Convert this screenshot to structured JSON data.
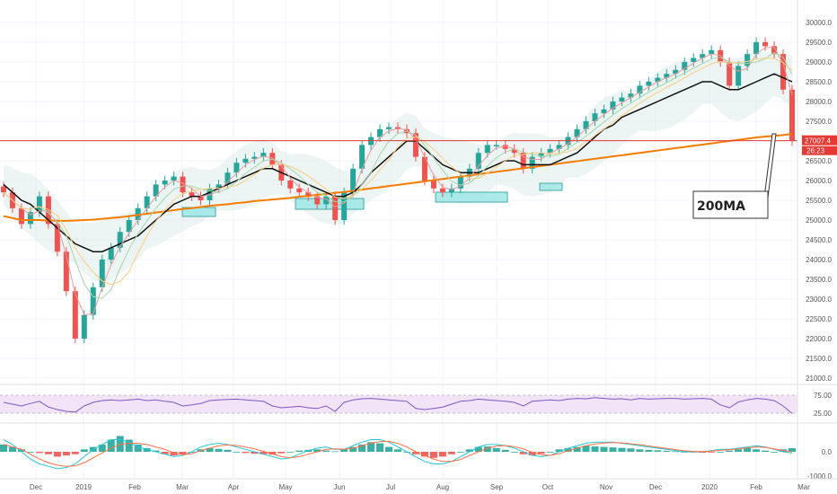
{
  "chart_data": [
    {
      "type": "candlestick",
      "ylim": [
        21000,
        30000
      ],
      "y_ticks": [
        "21000.0",
        "21500.0",
        "22000.0",
        "22500.0",
        "23000.0",
        "23500.0",
        "24000.0",
        "24500.0",
        "25000.0",
        "25500.0",
        "26000.0",
        "26500.0",
        "27000.0",
        "27500.0",
        "28000.0",
        "28500.0",
        "29000.0",
        "29500.0",
        "30000.0"
      ],
      "x_ticks": [
        "Dec",
        "2019",
        "Feb",
        "Mar",
        "Apr",
        "May",
        "Jun",
        "Jul",
        "Aug",
        "Sep",
        "Oct",
        "Nov",
        "Dec",
        "2020",
        "Feb",
        "Mar"
      ],
      "grid": true,
      "price_x": [
        0,
        10,
        20,
        30,
        40,
        50,
        60,
        70,
        80,
        90,
        100,
        110,
        120,
        130,
        140,
        150,
        160,
        170,
        180,
        190,
        200,
        210,
        220,
        230,
        240,
        250,
        260,
        270,
        280,
        290,
        300,
        310,
        320,
        330,
        340,
        350,
        360,
        370,
        380,
        390,
        400,
        410,
        420,
        430,
        440,
        450,
        460,
        470,
        480,
        490,
        500,
        510,
        520,
        530,
        540,
        550,
        560,
        570,
        580,
        590,
        600,
        610,
        620,
        630,
        640,
        650,
        660,
        670,
        680,
        690,
        700,
        710,
        720,
        730,
        740,
        750,
        760,
        770,
        780,
        790,
        800,
        810,
        820,
        830,
        840,
        850,
        860,
        870,
        880
      ],
      "price_close": [
        25700,
        25300,
        24900,
        25200,
        25600,
        24900,
        24200,
        23200,
        22000,
        22600,
        23300,
        24000,
        24300,
        24700,
        25000,
        25300,
        25600,
        25900,
        26000,
        26100,
        25700,
        25600,
        25500,
        25800,
        25900,
        26200,
        26450,
        26550,
        26600,
        26700,
        26400,
        26000,
        25800,
        25700,
        25600,
        25400,
        25600,
        25000,
        25700,
        26300,
        26900,
        27100,
        27300,
        27350,
        27300,
        27200,
        26600,
        26000,
        25800,
        25700,
        25800,
        26100,
        26300,
        26700,
        26900,
        26900,
        26800,
        26700,
        26300,
        26600,
        26700,
        26800,
        26900,
        27100,
        27300,
        27500,
        27700,
        27800,
        28000,
        28100,
        28200,
        28400,
        28500,
        28600,
        28700,
        28800,
        29000,
        29100,
        29200,
        29300,
        29000,
        28400,
        28900,
        29200,
        29500,
        29400,
        29200,
        28300,
        27000
      ],
      "overlays": [
        {
          "name": "200MA",
          "color": "#f57c00",
          "values": [
            25100,
            25050,
            25000,
            25000,
            25000,
            24990,
            24980,
            24980,
            24990,
            25000,
            25010,
            25030,
            25050,
            25070,
            25100,
            25130,
            25160,
            25190,
            25220,
            25250,
            25280,
            25300,
            25330,
            25360,
            25380,
            25400,
            25430,
            25450,
            25480,
            25500,
            25520,
            25540,
            25560,
            25590,
            25610,
            25640,
            25660,
            25690,
            25710,
            25740,
            25770,
            25800,
            25830,
            25860,
            25890,
            25920,
            25950,
            25980,
            26010,
            26040,
            26070,
            26100,
            26130,
            26160,
            26190,
            26220,
            26250,
            26280,
            26310,
            26340,
            26370,
            26400,
            26430,
            26460,
            26490,
            26520,
            26550,
            26580,
            26610,
            26640,
            26670,
            26700,
            26730,
            26760,
            26790,
            26820,
            26850,
            26880,
            26910,
            26940,
            26970,
            27000,
            27030,
            27060,
            27090,
            27110,
            27130,
            27150,
            27180
          ]
        },
        {
          "name": "",
          "color": "#111111",
          "values": [
            25900,
            25700,
            25500,
            25400,
            25200,
            25000,
            24800,
            24600,
            24400,
            24300,
            24200,
            24200,
            24300,
            24400,
            24500,
            24600,
            24800,
            25000,
            25200,
            25400,
            25500,
            25600,
            25600,
            25700,
            25800,
            25900,
            26000,
            26100,
            26200,
            26300,
            26300,
            26200,
            26100,
            26000,
            25900,
            25800,
            25700,
            25600,
            25600,
            25700,
            25900,
            26200,
            26400,
            26600,
            26800,
            27000,
            27000,
            26800,
            26600,
            26400,
            26300,
            26200,
            26200,
            26200,
            26300,
            26400,
            26500,
            26500,
            26400,
            26400,
            26400,
            26400,
            26500,
            26600,
            26700,
            26900,
            27100,
            27300,
            27400,
            27600,
            27700,
            27800,
            27900,
            28000,
            28100,
            28200,
            28300,
            28400,
            28500,
            28500,
            28400,
            28300,
            28300,
            28400,
            28500,
            28600,
            28700,
            28600,
            28500
          ]
        }
      ],
      "last_price_label": "27007.4",
      "countdown_label": "26:23",
      "annotation": "200MA"
    },
    {
      "type": "line",
      "ylim": [
        0,
        100
      ],
      "y_ticks": [
        "25.00",
        "75.00"
      ],
      "x": [
        0,
        10,
        20,
        30,
        40,
        50,
        60,
        70,
        80,
        90,
        100,
        110,
        120,
        130,
        140,
        150,
        160,
        170,
        180,
        190,
        200,
        210,
        220,
        230,
        240,
        250,
        260,
        270,
        280,
        290,
        300,
        310,
        320,
        330,
        340,
        350,
        360,
        370,
        380,
        390,
        400,
        410,
        420,
        430,
        440,
        450,
        460,
        470,
        480,
        490,
        500,
        510,
        520,
        530,
        540,
        550,
        560,
        570,
        580,
        590,
        600,
        610,
        620,
        630,
        640,
        650,
        660,
        670,
        680,
        690,
        700,
        710,
        720,
        730,
        740,
        750,
        760,
        770,
        780,
        790,
        800,
        810,
        820,
        830,
        840,
        850,
        860,
        870,
        880
      ],
      "series": [
        {
          "name": "",
          "color": "#7e57c2",
          "values": [
            55,
            50,
            45,
            52,
            58,
            42,
            35,
            30,
            28,
            45,
            55,
            60,
            62,
            60,
            62,
            64,
            60,
            62,
            58,
            55,
            45,
            48,
            52,
            60,
            62,
            63,
            64,
            62,
            60,
            58,
            45,
            40,
            42,
            44,
            40,
            38,
            45,
            30,
            55,
            62,
            65,
            66,
            64,
            62,
            60,
            58,
            38,
            35,
            38,
            42,
            50,
            58,
            60,
            64,
            62,
            60,
            58,
            55,
            45,
            58,
            60,
            62,
            60,
            64,
            66,
            65,
            68,
            66,
            64,
            65,
            62,
            66,
            64,
            65,
            66,
            66,
            64,
            65,
            66,
            64,
            48,
            40,
            56,
            62,
            66,
            64,
            60,
            45,
            24
          ]
        }
      ]
    },
    {
      "type": "bar",
      "ylim": [
        -1000,
        1000
      ],
      "y_ticks": [
        "0.0",
        "-1000.0"
      ],
      "x": [
        0,
        10,
        20,
        30,
        40,
        50,
        60,
        70,
        80,
        90,
        100,
        110,
        120,
        130,
        140,
        150,
        160,
        170,
        180,
        190,
        200,
        210,
        220,
        230,
        240,
        250,
        260,
        270,
        280,
        290,
        300,
        310,
        320,
        330,
        340,
        350,
        360,
        370,
        380,
        390,
        400,
        410,
        420,
        430,
        440,
        450,
        460,
        470,
        480,
        490,
        500,
        510,
        520,
        530,
        540,
        550,
        560,
        570,
        580,
        590,
        600,
        610,
        620,
        630,
        640,
        650,
        660,
        670,
        680,
        690,
        700,
        710,
        720,
        730,
        740,
        750,
        760,
        770,
        780,
        790,
        800,
        810,
        820,
        830,
        840,
        850,
        860,
        870,
        880
      ],
      "values": [
        300,
        200,
        100,
        0,
        -50,
        -100,
        -200,
        -150,
        -100,
        100,
        200,
        300,
        500,
        650,
        500,
        300,
        150,
        50,
        -100,
        -150,
        -100,
        0,
        100,
        150,
        120,
        80,
        0,
        -50,
        -80,
        -100,
        -120,
        -60,
        0,
        50,
        80,
        100,
        50,
        20,
        100,
        200,
        300,
        400,
        350,
        200,
        100,
        0,
        -100,
        -200,
        -250,
        -200,
        -100,
        0,
        100,
        200,
        220,
        150,
        80,
        0,
        -100,
        -150,
        -80,
        0,
        100,
        150,
        200,
        250,
        220,
        200,
        180,
        160,
        140,
        100,
        80,
        60,
        40,
        20,
        0,
        -20,
        -40,
        -20,
        0,
        50,
        100,
        150,
        100,
        50,
        0,
        100,
        150
      ],
      "series": [
        {
          "name": "",
          "color": "#26c6da",
          "values": [
            500,
            300,
            0,
            -300,
            -500,
            -600,
            -700,
            -650,
            -500,
            -200,
            100,
            300,
            500,
            500,
            400,
            200,
            100,
            0,
            -100,
            -200,
            -150,
            0,
            200,
            300,
            350,
            300,
            200,
            100,
            0,
            -100,
            -200,
            -300,
            -250,
            -100,
            50,
            150,
            200,
            100,
            100,
            250,
            400,
            500,
            500,
            400,
            200,
            0,
            -200,
            -400,
            -500,
            -500,
            -400,
            -200,
            0,
            200,
            300,
            300,
            250,
            150,
            0,
            -150,
            -200,
            -150,
            0,
            150,
            250,
            350,
            400,
            400,
            400,
            350,
            300,
            250,
            200,
            150,
            100,
            50,
            0,
            0,
            0,
            50,
            100,
            100,
            150,
            200,
            250,
            200,
            100,
            0,
            -50
          ]
        },
        {
          "name": "",
          "color": "#ff7043",
          "values": [
            300,
            200,
            100,
            -100,
            -300,
            -450,
            -550,
            -600,
            -580,
            -450,
            -250,
            -50,
            150,
            300,
            350,
            350,
            300,
            200,
            100,
            -50,
            -120,
            -80,
            50,
            150,
            250,
            280,
            260,
            200,
            120,
            20,
            -80,
            -200,
            -250,
            -200,
            -100,
            0,
            100,
            120,
            100,
            150,
            250,
            350,
            420,
            430,
            350,
            200,
            0,
            -150,
            -300,
            -400,
            -400,
            -320,
            -150,
            0,
            150,
            230,
            260,
            210,
            120,
            -20,
            -120,
            -150,
            -80,
            50,
            150,
            250,
            320,
            360,
            380,
            370,
            330,
            290,
            240,
            190,
            140,
            90,
            40,
            20,
            10,
            30,
            60,
            90,
            120,
            160,
            200,
            180,
            120,
            50,
            0
          ]
        }
      ]
    }
  ],
  "colors": {
    "up": "#26a69a",
    "down": "#ef5350",
    "support_zone_fill": "#9ee6e6",
    "support_zone_stroke": "#2a9d9d",
    "band_fill": "#d9ece9",
    "rsi_band_fill": "#f2e3f7",
    "macd_hist_up": "#26a69a",
    "macd_hist_down": "#ef5350",
    "red_line": "#e53935"
  }
}
